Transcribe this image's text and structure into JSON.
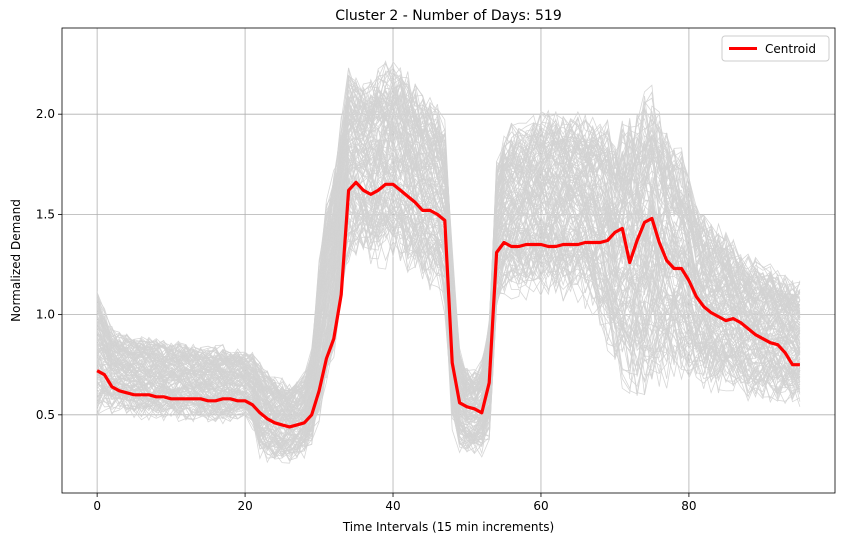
{
  "chart_data": {
    "type": "line",
    "title": "Cluster 2 - Number of Days: 519",
    "xlabel": "Time Intervals (15 min increments)",
    "ylabel": "Normalized Demand",
    "xlim": [
      -4.75,
      99.75
    ],
    "ylim": [
      0.11,
      2.43
    ],
    "xticks": [
      0,
      20,
      40,
      60,
      80
    ],
    "xtick_labels": [
      "0",
      "20",
      "40",
      "60",
      "80"
    ],
    "yticks": [
      0.5,
      1.0,
      1.5,
      2.0
    ],
    "ytick_labels": [
      "0.5",
      "1.0",
      "1.5",
      "2.0"
    ],
    "grid": true,
    "legend_position": "top-right",
    "background_series": {
      "count": 519,
      "color": "#d3d3d3",
      "band_low": [
        0.48,
        0.5,
        0.5,
        0.5,
        0.49,
        0.48,
        0.47,
        0.47,
        0.47,
        0.46,
        0.46,
        0.46,
        0.46,
        0.45,
        0.45,
        0.45,
        0.45,
        0.45,
        0.45,
        0.45,
        0.45,
        0.42,
        0.28,
        0.26,
        0.25,
        0.25,
        0.25,
        0.27,
        0.28,
        0.32,
        0.45,
        0.6,
        0.78,
        1.05,
        1.22,
        1.28,
        1.26,
        1.24,
        1.22,
        1.22,
        1.22,
        1.2,
        1.18,
        1.16,
        1.12,
        1.1,
        1.08,
        1.0,
        0.4,
        0.3,
        0.28,
        0.28,
        0.28,
        0.35,
        1.0,
        1.05,
        1.06,
        1.06,
        1.06,
        1.06,
        1.06,
        1.06,
        1.06,
        1.06,
        1.06,
        1.05,
        1.02,
        0.98,
        0.9,
        0.8,
        0.7,
        0.62,
        0.58,
        0.55,
        0.54,
        0.56,
        0.58,
        0.62,
        0.65,
        0.65,
        0.64,
        0.62,
        0.6,
        0.6,
        0.6,
        0.6,
        0.58,
        0.58,
        0.56,
        0.55,
        0.55,
        0.55,
        0.55,
        0.54,
        0.54,
        0.53
      ],
      "band_high": [
        1.15,
        1.05,
        0.95,
        0.93,
        0.92,
        0.92,
        0.91,
        0.9,
        0.9,
        0.89,
        0.88,
        0.88,
        0.88,
        0.87,
        0.87,
        0.86,
        0.86,
        0.86,
        0.85,
        0.85,
        0.84,
        0.82,
        0.78,
        0.74,
        0.72,
        0.7,
        0.68,
        0.68,
        0.72,
        0.85,
        1.3,
        1.6,
        1.75,
        2.0,
        2.28,
        2.22,
        2.2,
        2.22,
        2.28,
        2.3,
        2.32,
        2.3,
        2.25,
        2.2,
        2.15,
        2.12,
        2.08,
        2.0,
        1.4,
        0.85,
        0.75,
        0.75,
        0.8,
        1.0,
        1.8,
        1.95,
        2.0,
        1.98,
        2.0,
        2.02,
        2.05,
        2.05,
        2.03,
        2.03,
        2.03,
        2.05,
        2.05,
        2.02,
        2.02,
        2.0,
        1.9,
        2.0,
        2.05,
        2.1,
        2.15,
        2.18,
        2.1,
        2.0,
        1.9,
        1.85,
        1.75,
        1.6,
        1.55,
        1.5,
        1.48,
        1.45,
        1.4,
        1.35,
        1.32,
        1.3,
        1.28,
        1.28,
        1.25,
        1.22,
        1.2,
        1.18
      ]
    },
    "series": [
      {
        "name": "Centroid",
        "color": "#ff0000",
        "x": [
          0,
          1,
          2,
          3,
          4,
          5,
          6,
          7,
          8,
          9,
          10,
          11,
          12,
          13,
          14,
          15,
          16,
          17,
          18,
          19,
          20,
          21,
          22,
          23,
          24,
          25,
          26,
          27,
          28,
          29,
          30,
          31,
          32,
          33,
          34,
          35,
          36,
          37,
          38,
          39,
          40,
          41,
          42,
          43,
          44,
          45,
          46,
          47,
          48,
          49,
          50,
          51,
          52,
          53,
          54,
          55,
          56,
          57,
          58,
          59,
          60,
          61,
          62,
          63,
          64,
          65,
          66,
          67,
          68,
          69,
          70,
          71,
          72,
          73,
          74,
          75,
          76,
          77,
          78,
          79,
          80,
          81,
          82,
          83,
          84,
          85,
          86,
          87,
          88,
          89,
          90,
          91,
          92,
          93,
          94,
          95
        ],
        "values": [
          0.72,
          0.7,
          0.64,
          0.62,
          0.61,
          0.6,
          0.6,
          0.6,
          0.59,
          0.59,
          0.58,
          0.58,
          0.58,
          0.58,
          0.58,
          0.57,
          0.57,
          0.58,
          0.58,
          0.57,
          0.57,
          0.55,
          0.51,
          0.48,
          0.46,
          0.45,
          0.44,
          0.45,
          0.46,
          0.5,
          0.62,
          0.78,
          0.88,
          1.1,
          1.62,
          1.66,
          1.62,
          1.6,
          1.62,
          1.65,
          1.65,
          1.62,
          1.59,
          1.56,
          1.52,
          1.52,
          1.5,
          1.47,
          0.76,
          0.56,
          0.54,
          0.53,
          0.51,
          0.66,
          1.31,
          1.36,
          1.34,
          1.34,
          1.35,
          1.35,
          1.35,
          1.34,
          1.34,
          1.35,
          1.35,
          1.35,
          1.36,
          1.36,
          1.36,
          1.37,
          1.41,
          1.43,
          1.26,
          1.37,
          1.46,
          1.48,
          1.36,
          1.27,
          1.23,
          1.23,
          1.17,
          1.09,
          1.04,
          1.01,
          0.99,
          0.97,
          0.98,
          0.96,
          0.93,
          0.9,
          0.88,
          0.86,
          0.85,
          0.81,
          0.75,
          0.75
        ]
      }
    ]
  }
}
